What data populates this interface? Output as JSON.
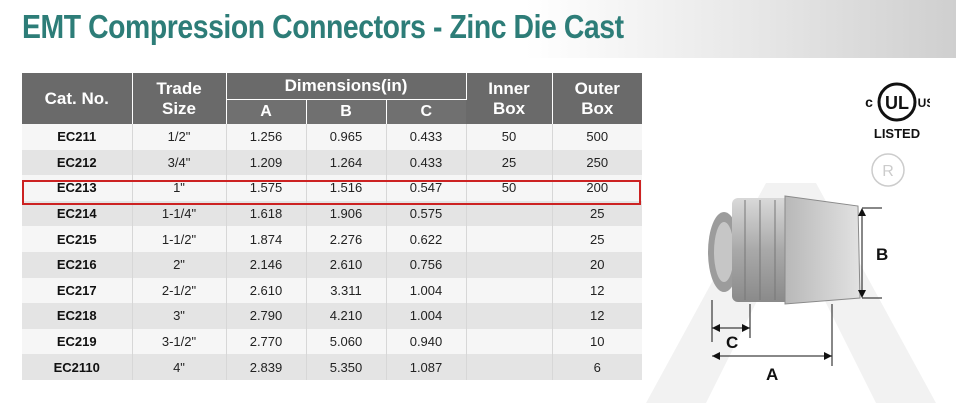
{
  "title": "EMT Compression Connectors - Zinc Die Cast",
  "table": {
    "headers": {
      "cat_no": "Cat. No.",
      "trade_size_1": "Trade",
      "trade_size_2": "Size",
      "dimensions": "Dimensions(in)",
      "dim_a": "A",
      "dim_b": "B",
      "dim_c": "C",
      "inner_box_1": "Inner",
      "inner_box_2": "Box",
      "outer_box_1": "Outer",
      "outer_box_2": "Box"
    },
    "rows": [
      {
        "cat": "EC211",
        "size": "1/2\"",
        "a": "1.256",
        "b": "0.965",
        "c": "0.433",
        "inner": "50",
        "outer": "500"
      },
      {
        "cat": "EC212",
        "size": "3/4\"",
        "a": "1.209",
        "b": "1.264",
        "c": "0.433",
        "inner": "25",
        "outer": "250"
      },
      {
        "cat": "EC213",
        "size": "1\"",
        "a": "1.575",
        "b": "1.516",
        "c": "0.547",
        "inner": "50",
        "outer": "200"
      },
      {
        "cat": "EC214",
        "size": "1-1/4\"",
        "a": "1.618",
        "b": "1.906",
        "c": "0.575",
        "inner": "",
        "outer": "25"
      },
      {
        "cat": "EC215",
        "size": "1-1/2\"",
        "a": "1.874",
        "b": "2.276",
        "c": "0.622",
        "inner": "",
        "outer": "25"
      },
      {
        "cat": "EC216",
        "size": "2\"",
        "a": "2.146",
        "b": "2.610",
        "c": "0.756",
        "inner": "",
        "outer": "20"
      },
      {
        "cat": "EC217",
        "size": "2-1/2\"",
        "a": "2.610",
        "b": "3.311",
        "c": "1.004",
        "inner": "",
        "outer": "12"
      },
      {
        "cat": "EC218",
        "size": "3\"",
        "a": "2.790",
        "b": "4.210",
        "c": "1.004",
        "inner": "",
        "outer": "12"
      },
      {
        "cat": "EC219",
        "size": "3-1/2\"",
        "a": "2.770",
        "b": "5.060",
        "c": "0.940",
        "inner": "",
        "outer": "10"
      },
      {
        "cat": "EC2110",
        "size": "4\"",
        "a": "2.839",
        "b": "5.350",
        "c": "1.087",
        "inner": "",
        "outer": "6"
      }
    ]
  },
  "ul_logo": {
    "c": "c",
    "ul": "UL",
    "us": "US",
    "listed": "LISTED"
  },
  "diagram": {
    "label_a": "A",
    "label_b": "B",
    "label_c": "C"
  },
  "colors": {
    "title": "#2d7d78",
    "header_bg": "#6a6a6a",
    "highlight": "#cc2222"
  }
}
